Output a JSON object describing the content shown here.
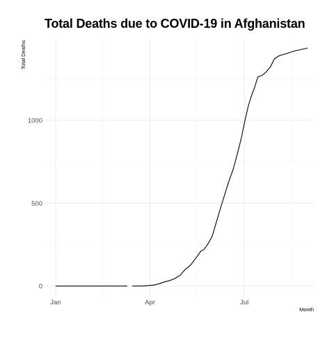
{
  "chart_data": {
    "type": "line",
    "title": "Total Deaths due to COVID-19 in Afghanistan",
    "xlabel": "Month",
    "ylabel": "Total Deaths",
    "x_ticks": [
      {
        "date": "2020-01-01",
        "label": "Jan"
      },
      {
        "date": "2020-04-01",
        "label": "Apr"
      },
      {
        "date": "2020-07-01",
        "label": "Jul"
      }
    ],
    "y_ticks": [
      0,
      500,
      1000
    ],
    "xlim": [
      "2019-12-22",
      "2020-09-06"
    ],
    "ylim": [
      -60,
      1490
    ],
    "grid": true,
    "series": [
      {
        "segments": [
          [
            [
              "2020-01-01",
              0
            ],
            [
              "2020-01-15",
              0
            ],
            [
              "2020-02-01",
              0
            ],
            [
              "2020-02-15",
              0
            ],
            [
              "2020-03-01",
              0
            ],
            [
              "2020-03-10",
              0
            ]
          ],
          [
            [
              "2020-03-15",
              0
            ],
            [
              "2020-03-22",
              0
            ],
            [
              "2020-03-27",
              1
            ],
            [
              "2020-04-01",
              4
            ],
            [
              "2020-04-05",
              6
            ],
            [
              "2020-04-10",
              14
            ],
            [
              "2020-04-15",
              25
            ],
            [
              "2020-04-20",
              33
            ],
            [
              "2020-04-25",
              45
            ],
            [
              "2020-04-30",
              65
            ],
            [
              "2020-05-05",
              100
            ],
            [
              "2020-05-10",
              125
            ],
            [
              "2020-05-13",
              150
            ],
            [
              "2020-05-16",
              175
            ],
            [
              "2020-05-20",
              210
            ],
            [
              "2020-05-23",
              220
            ],
            [
              "2020-05-27",
              255
            ],
            [
              "2020-05-31",
              300
            ],
            [
              "2020-06-04",
              385
            ],
            [
              "2020-06-08",
              470
            ],
            [
              "2020-06-12",
              550
            ],
            [
              "2020-06-16",
              630
            ],
            [
              "2020-06-20",
              700
            ],
            [
              "2020-06-24",
              790
            ],
            [
              "2020-06-28",
              890
            ],
            [
              "2020-07-02",
              1010
            ],
            [
              "2020-07-05",
              1090
            ],
            [
              "2020-07-08",
              1150
            ],
            [
              "2020-07-11",
              1200
            ],
            [
              "2020-07-14",
              1260
            ],
            [
              "2020-07-18",
              1270
            ],
            [
              "2020-07-22",
              1290
            ],
            [
              "2020-07-26",
              1320
            ],
            [
              "2020-07-30",
              1370
            ],
            [
              "2020-08-04",
              1390
            ],
            [
              "2020-08-10",
              1400
            ],
            [
              "2020-08-17",
              1415
            ],
            [
              "2020-08-24",
              1425
            ],
            [
              "2020-08-31",
              1435
            ]
          ]
        ]
      }
    ],
    "colors": {
      "line": "#000000",
      "grid_major": "#ebebeb",
      "grid_minor": "#f4f4f4",
      "text": "#4d4d4d",
      "title": "#000000"
    }
  }
}
